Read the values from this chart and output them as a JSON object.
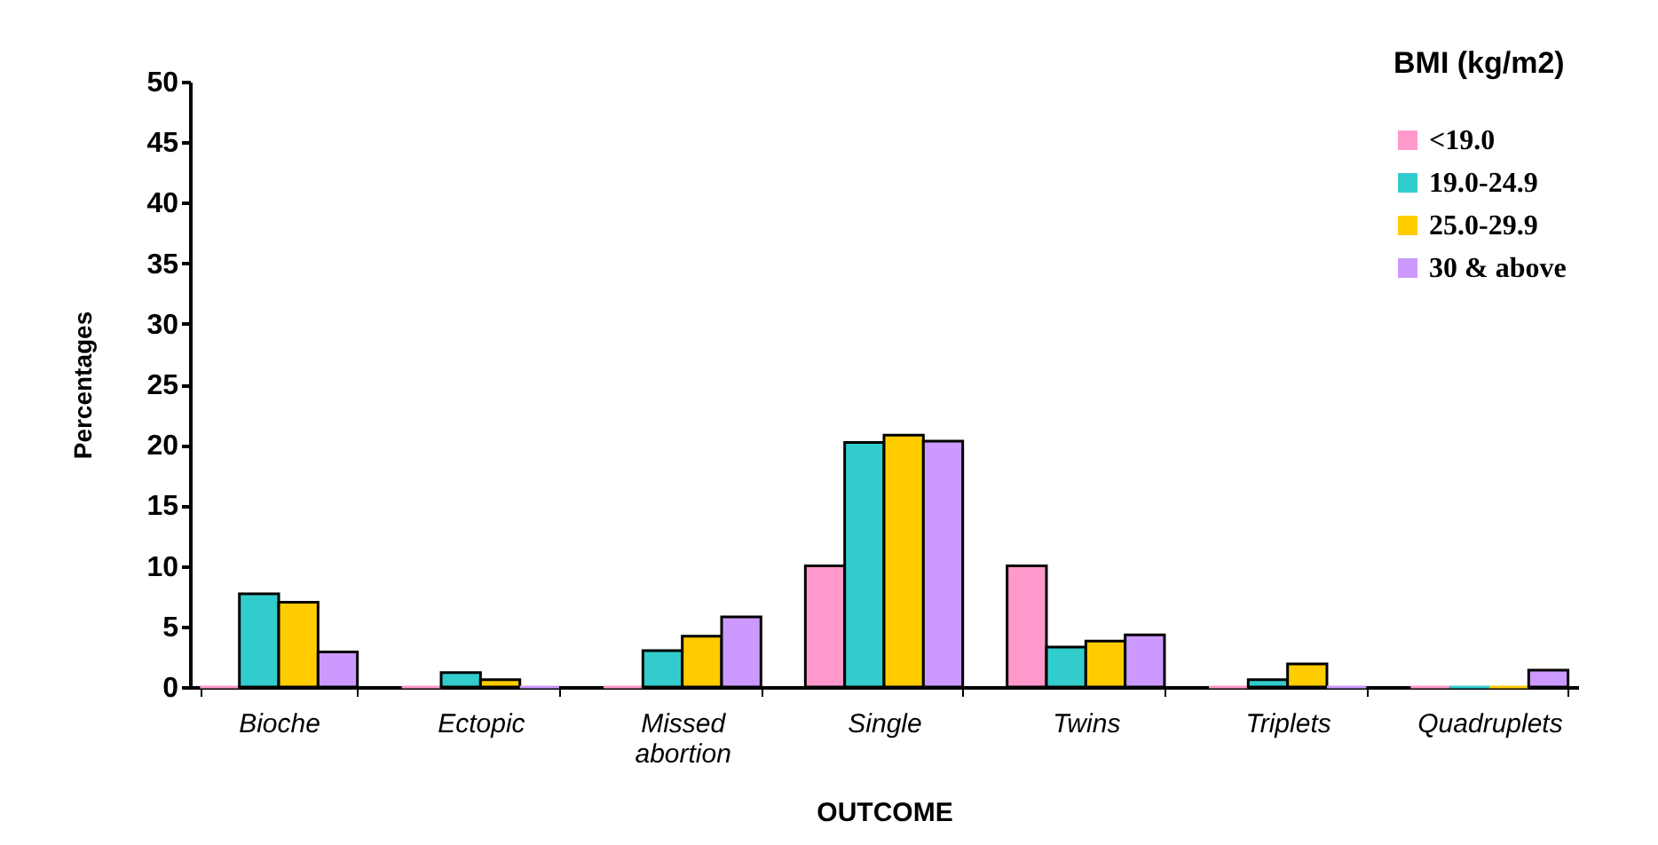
{
  "chart_data": {
    "type": "bar",
    "xlabel": "OUTCOME",
    "ylabel": "Percentages",
    "legend_title": "BMI (kg/m2)",
    "legend": "top right",
    "grid": false,
    "categories": [
      "Bioche",
      "Ectopic",
      "Missed abortion",
      "Single",
      "Twins",
      "Triplets",
      "Quadruplets"
    ],
    "series": [
      {
        "name": "<19.0",
        "color": "#ff99cc",
        "values": [
          0,
          0,
          0,
          10,
          10,
          0,
          0
        ]
      },
      {
        "name": "19.0-24.9",
        "color": "#33cccc",
        "values": [
          7.7,
          1.2,
          3.0,
          20.2,
          3.3,
          0.6,
          0
        ]
      },
      {
        "name": "25.0-29.9",
        "color": "#ffcc00",
        "values": [
          7.0,
          0.6,
          4.2,
          20.8,
          3.8,
          1.9,
          0
        ]
      },
      {
        "name": "30 & above",
        "color": "#cc99ff",
        "values": [
          2.9,
          0,
          5.8,
          20.3,
          4.3,
          0,
          1.4
        ]
      }
    ],
    "ylim": [
      0,
      50
    ],
    "yticks": [
      0,
      5,
      10,
      15,
      20,
      25,
      30,
      35,
      40,
      45,
      50
    ]
  }
}
